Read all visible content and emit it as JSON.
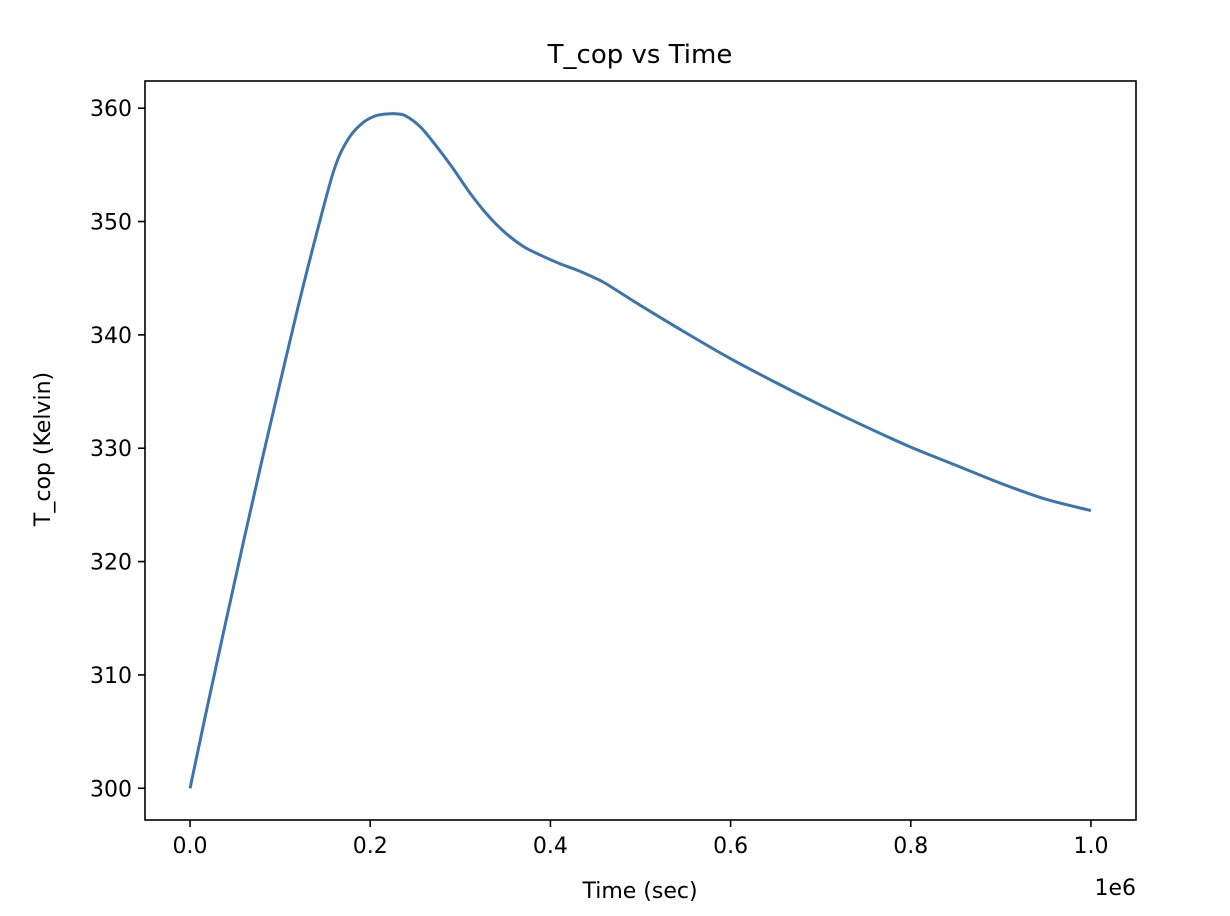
{
  "chart_data": {
    "type": "line",
    "title": "T_cop vs Time",
    "xlabel": "Time (sec)",
    "ylabel": "T_cop (Kelvin)",
    "x_offset_text": "1e6",
    "xlim": [
      -50000,
      1050000
    ],
    "ylim": [
      297.2,
      362.4
    ],
    "x_ticks": [
      0,
      200000,
      400000,
      600000,
      800000,
      1000000
    ],
    "x_tick_labels": [
      "0.0",
      "0.2",
      "0.4",
      "0.6",
      "0.8",
      "1.0"
    ],
    "y_ticks": [
      300,
      310,
      320,
      330,
      340,
      350,
      360
    ],
    "y_tick_labels": [
      "300",
      "310",
      "320",
      "330",
      "340",
      "350",
      "360"
    ],
    "grid": false,
    "legend": false,
    "line_color": "#3c74ac",
    "series": [
      {
        "x": [
          0,
          20000,
          40000,
          60000,
          80000,
          100000,
          120000,
          140000,
          160000,
          175000,
          190000,
          205000,
          220000,
          230000,
          240000,
          255000,
          270000,
          290000,
          310000,
          330000,
          350000,
          370000,
          390000,
          410000,
          430000,
          450000,
          460000,
          480000,
          500000,
          550000,
          600000,
          650000,
          700000,
          750000,
          800000,
          850000,
          900000,
          950000,
          1000000
        ],
        "y": [
          300.0,
          307.5,
          314.8,
          322.0,
          329.0,
          335.8,
          342.5,
          348.8,
          354.6,
          357.2,
          358.6,
          359.3,
          359.5,
          359.5,
          359.3,
          358.4,
          357.0,
          354.9,
          352.6,
          350.6,
          349.0,
          347.8,
          347.0,
          346.3,
          345.7,
          345.0,
          344.6,
          343.6,
          342.6,
          340.2,
          337.9,
          335.8,
          333.8,
          331.9,
          330.1,
          328.5,
          326.9,
          325.5,
          324.5
        ]
      }
    ]
  }
}
